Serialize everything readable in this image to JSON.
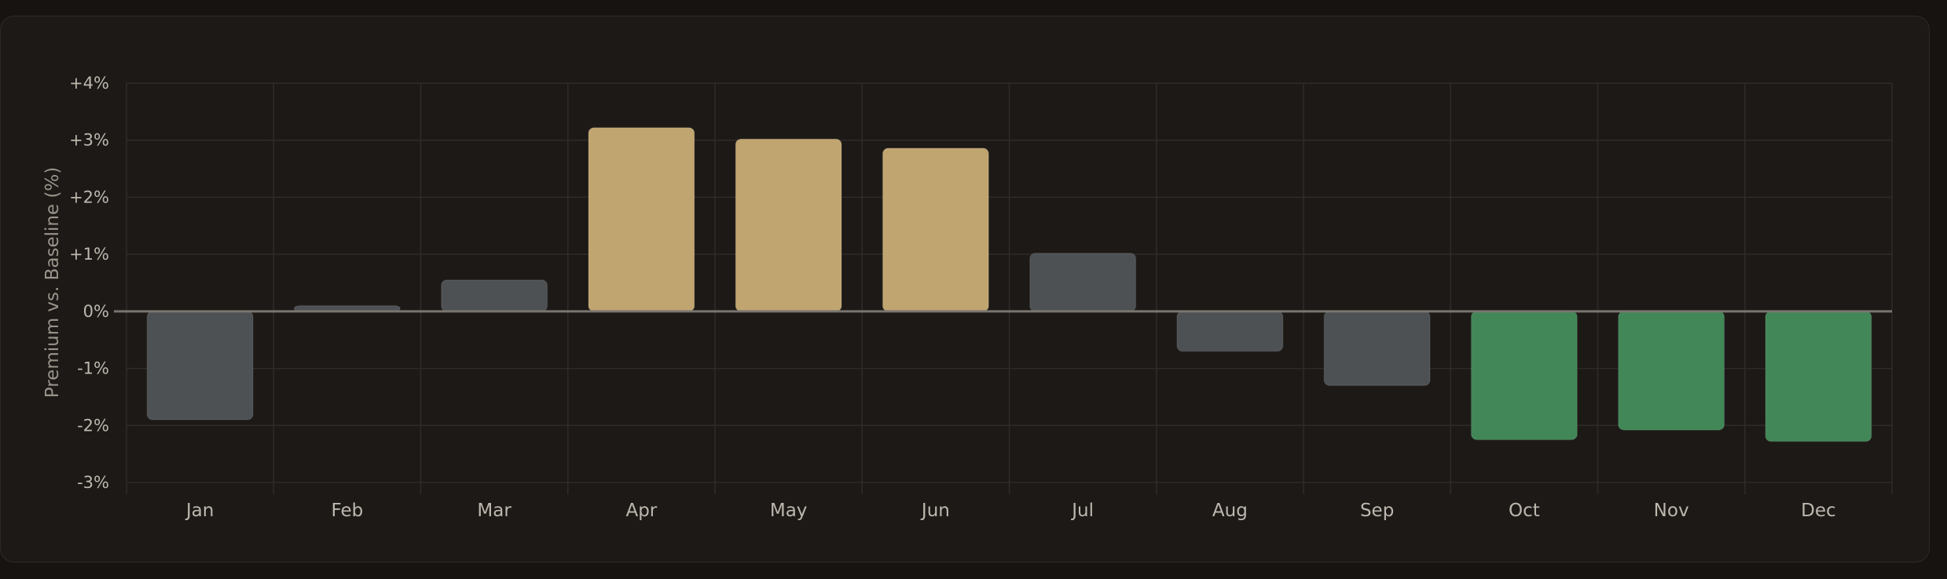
{
  "chart_data": {
    "type": "bar",
    "title": "",
    "xlabel": "",
    "ylabel": "Premium vs. Baseline (%)",
    "ylim": [
      -3,
      4
    ],
    "yticks": [
      4,
      3,
      2,
      1,
      0,
      -1,
      -2,
      -3
    ],
    "ytick_labels": [
      "+4%",
      "+3%",
      "+2%",
      "+1%",
      "0%",
      "-1%",
      "-2%",
      "-3%"
    ],
    "categories": [
      "Jan",
      "Feb",
      "Mar",
      "Apr",
      "May",
      "Jun",
      "Jul",
      "Aug",
      "Sep",
      "Oct",
      "Nov",
      "Dec"
    ],
    "values": [
      -1.9,
      0.1,
      0.55,
      3.22,
      3.02,
      2.86,
      1.02,
      -0.7,
      -1.3,
      -2.25,
      -2.08,
      -2.28
    ],
    "bar_colors": [
      "#4e5154",
      "#4e5154",
      "#4e5154",
      "#c0a570",
      "#c0a570",
      "#c0a570",
      "#4e5154",
      "#4e5154",
      "#4e5154",
      "#428757",
      "#428757",
      "#428757"
    ],
    "grid": true,
    "legend": "none"
  }
}
